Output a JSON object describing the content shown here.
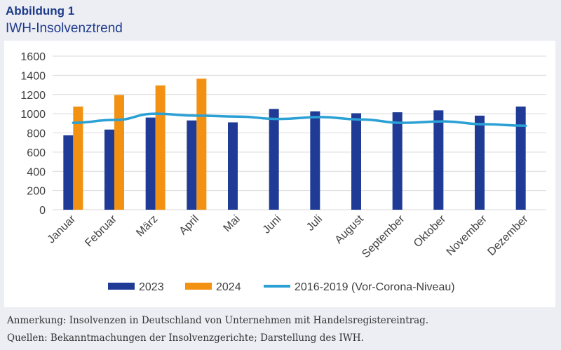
{
  "header": {
    "figure_label": "Abbildung 1",
    "figure_title": "IWH-Insolvenztrend"
  },
  "footer": {
    "note": "Anmerkung: Insolvenzen in Deutschland von Unternehmen mit Handelsregistereintrag.",
    "sources": "Quellen: Bekanntmachungen der Insolvenzgerichte; Darstellung des IWH."
  },
  "colors": {
    "series_2023": "#1f3b96",
    "series_2024": "#f39112",
    "series_line": "#2aa0d4",
    "gridline": "#d9d9d9",
    "text": "#404040"
  },
  "chart_data": {
    "type": "bar",
    "title": "IWH-Insolvenztrend",
    "categories": [
      "Januar",
      "Februar",
      "März",
      "April",
      "Mai",
      "Juni",
      "Juli",
      "August",
      "September",
      "Oktober",
      "November",
      "Dezember"
    ],
    "yticks": [
      "0",
      "200",
      "400",
      "600",
      "800",
      "1000",
      "1200",
      "1400",
      "1600"
    ],
    "ylim": [
      0,
      1600
    ],
    "grid": true,
    "legend_position": "bottom",
    "series": [
      {
        "name": "2023",
        "kind": "bar",
        "values": [
          775,
          835,
          960,
          930,
          910,
          1050,
          1025,
          1005,
          1015,
          1035,
          980,
          1075
        ]
      },
      {
        "name": "2024",
        "kind": "bar",
        "values": [
          1075,
          1195,
          1295,
          1365,
          null,
          null,
          null,
          null,
          null,
          null,
          null,
          null
        ]
      },
      {
        "name": "2016-2019 (Vor-Corona-Niveau)",
        "kind": "line",
        "values": [
          905,
          935,
          1000,
          980,
          970,
          945,
          965,
          940,
          905,
          920,
          890,
          875
        ]
      }
    ]
  }
}
